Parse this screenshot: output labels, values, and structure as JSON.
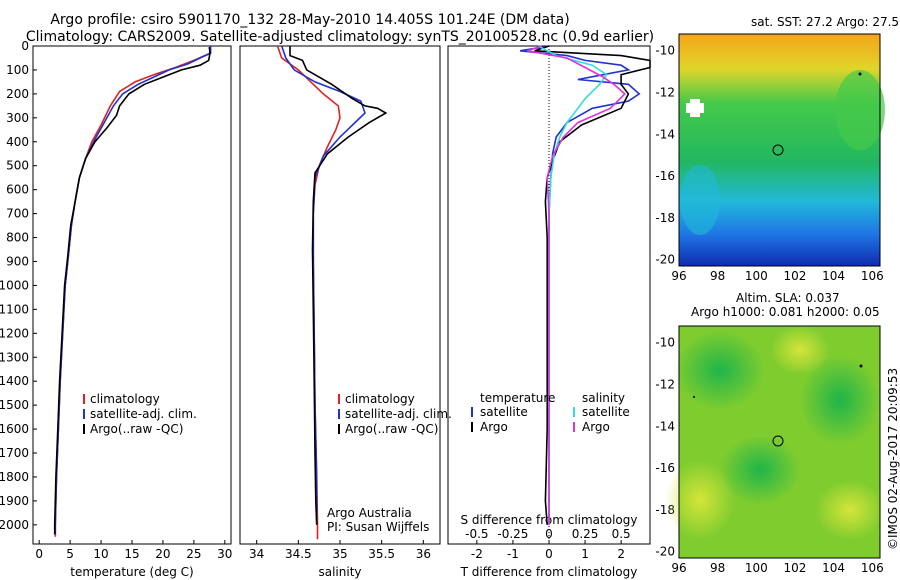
{
  "header": {
    "line1": "Argo profile: csiro 5901170_132 28-May-2010 14.405S 101.24E (DM data)",
    "line2": "Climatology: CARS2009. Satellite-adjusted climatology: synTS_20100528.nc (0.9d earlier)"
  },
  "colors": {
    "clim": "#dd2222",
    "sat": "#2233cc",
    "argo": "#000000",
    "sat_s": "#33dddd",
    "argo_s": "#dd33dd"
  },
  "chart_data": [
    {
      "type": "line",
      "id": "temperature",
      "xlabel": "temperature (deg C)",
      "xlim": [
        -1,
        31
      ],
      "ylim": [
        2080,
        0
      ],
      "xticks": [
        0,
        5,
        10,
        15,
        20,
        25,
        30
      ],
      "yticks": [
        0,
        100,
        200,
        300,
        400,
        500,
        600,
        700,
        800,
        900,
        1000,
        1100,
        1200,
        1300,
        1400,
        1500,
        1600,
        1700,
        1800,
        1900,
        2000
      ],
      "legend": [
        "climatology",
        "satellite-adj. clim.",
        "Argo(..raw -QC)"
      ],
      "series": [
        {
          "name": "climatology",
          "color_key": "clim",
          "points": [
            [
              27.6,
              0
            ],
            [
              27.6,
              30
            ],
            [
              25,
              60
            ],
            [
              22,
              90
            ],
            [
              18.5,
              120
            ],
            [
              15.5,
              150
            ],
            [
              13,
              190
            ],
            [
              11.5,
              250
            ],
            [
              10,
              330
            ],
            [
              8.5,
              400
            ],
            [
              7.5,
              470
            ],
            [
              6.5,
              550
            ],
            [
              5.8,
              650
            ],
            [
              5.2,
              750
            ],
            [
              4.7,
              880
            ],
            [
              4.2,
              1000
            ],
            [
              3.8,
              1200
            ],
            [
              3.4,
              1400
            ],
            [
              3.1,
              1600
            ],
            [
              2.8,
              1800
            ],
            [
              2.6,
              2000
            ],
            [
              2.6,
              2050
            ]
          ]
        },
        {
          "name": "satellite-adj. clim.",
          "color_key": "sat",
          "points": [
            [
              27.7,
              0
            ],
            [
              27.7,
              30
            ],
            [
              26,
              50
            ],
            [
              24,
              75
            ],
            [
              21,
              100
            ],
            [
              18.5,
              130
            ],
            [
              16,
              160
            ],
            [
              13.5,
              200
            ],
            [
              12,
              250
            ],
            [
              10.5,
              320
            ],
            [
              9,
              390
            ],
            [
              7.5,
              470
            ],
            [
              6.5,
              550
            ],
            [
              5.8,
              650
            ],
            [
              5.2,
              750
            ],
            [
              4.7,
              880
            ],
            [
              4.2,
              1000
            ],
            [
              3.8,
              1200
            ],
            [
              3.4,
              1400
            ],
            [
              3.1,
              1600
            ],
            [
              2.8,
              1800
            ],
            [
              2.6,
              2000
            ],
            [
              2.6,
              2040
            ]
          ]
        },
        {
          "name": "Argo(..raw -QC)",
          "color_key": "argo",
          "points": [
            [
              27.5,
              5
            ],
            [
              27.6,
              30
            ],
            [
              27.4,
              60
            ],
            [
              26,
              80
            ],
            [
              23,
              100
            ],
            [
              20,
              130
            ],
            [
              17,
              160
            ],
            [
              14.5,
              200
            ],
            [
              13,
              250
            ],
            [
              12.5,
              290
            ],
            [
              11,
              340
            ],
            [
              9,
              400
            ],
            [
              7.5,
              470
            ],
            [
              6.5,
              550
            ],
            [
              5.8,
              650
            ],
            [
              5.1,
              750
            ],
            [
              4.6,
              880
            ],
            [
              4.1,
              1000
            ],
            [
              3.7,
              1200
            ],
            [
              3.3,
              1400
            ],
            [
              3,
              1600
            ],
            [
              2.7,
              1800
            ],
            [
              2.5,
              2000
            ],
            [
              2.5,
              2040
            ]
          ]
        }
      ]
    },
    {
      "type": "line",
      "id": "salinity",
      "xlabel": "salinity",
      "xlim": [
        33.8,
        36.2
      ],
      "ylim": [
        2080,
        0
      ],
      "xticks": [
        34,
        34.5,
        35,
        35.5,
        36
      ],
      "legend": [
        "climatology",
        "satellite-adj. clim.",
        "Argo(..raw -QC)"
      ],
      "annotation": [
        "Argo Australia",
        "PI: Susan Wijffels"
      ],
      "series": [
        {
          "name": "climatology",
          "color_key": "clim",
          "points": [
            [
              34.25,
              0
            ],
            [
              34.3,
              50
            ],
            [
              34.5,
              100
            ],
            [
              34.65,
              150
            ],
            [
              34.8,
              200
            ],
            [
              34.98,
              250
            ],
            [
              35.0,
              300
            ],
            [
              34.95,
              350
            ],
            [
              34.85,
              420
            ],
            [
              34.75,
              500
            ],
            [
              34.7,
              580
            ],
            [
              34.68,
              700
            ],
            [
              34.68,
              900
            ],
            [
              34.69,
              1200
            ],
            [
              34.7,
              1500
            ],
            [
              34.72,
              1800
            ],
            [
              34.73,
              2000
            ],
            [
              34.73,
              2060
            ]
          ]
        },
        {
          "name": "satellite-adj. clim.",
          "color_key": "sat",
          "points": [
            [
              34.3,
              0
            ],
            [
              34.35,
              50
            ],
            [
              34.45,
              100
            ],
            [
              34.7,
              150
            ],
            [
              35.0,
              190
            ],
            [
              35.25,
              230
            ],
            [
              35.3,
              280
            ],
            [
              35.15,
              330
            ],
            [
              35.0,
              380
            ],
            [
              34.8,
              460
            ],
            [
              34.7,
              550
            ],
            [
              34.68,
              700
            ],
            [
              34.68,
              900
            ],
            [
              34.69,
              1200
            ],
            [
              34.7,
              1500
            ],
            [
              34.72,
              1800
            ],
            [
              34.72,
              1990
            ]
          ]
        },
        {
          "name": "Argo(..raw -QC)",
          "color_key": "argo",
          "points": [
            [
              34.4,
              0
            ],
            [
              34.4,
              40
            ],
            [
              34.55,
              60
            ],
            [
              34.6,
              100
            ],
            [
              34.9,
              160
            ],
            [
              35.15,
              220
            ],
            [
              35.3,
              250
            ],
            [
              35.45,
              260
            ],
            [
              35.55,
              280
            ],
            [
              35.35,
              320
            ],
            [
              35.1,
              380
            ],
            [
              34.85,
              450
            ],
            [
              34.7,
              530
            ],
            [
              34.68,
              650
            ],
            [
              34.67,
              850
            ],
            [
              34.68,
              1100
            ],
            [
              34.69,
              1400
            ],
            [
              34.7,
              1700
            ],
            [
              34.71,
              1900
            ],
            [
              34.72,
              2000
            ]
          ]
        }
      ]
    },
    {
      "type": "line",
      "id": "difference",
      "xlabel": "T difference from climatology",
      "xlabel_top": "S difference from climatology",
      "xlim": [
        -2.8,
        2.8
      ],
      "xticks": [
        -2,
        -1,
        0,
        1,
        2
      ],
      "xticks_s": [
        -0.5,
        -0.25,
        0,
        0.25,
        0.5
      ],
      "legend_t_title": "temperature",
      "legend_s_title": "salinity",
      "legend_t": [
        "satellite",
        "Argo"
      ],
      "legend_s": [
        "satellite",
        "Argo"
      ],
      "series": [
        {
          "name": "satellite",
          "color_key": "sat",
          "points": [
            [
              0,
              0
            ],
            [
              -0.8,
              20
            ],
            [
              0.5,
              40
            ],
            [
              1.0,
              60
            ],
            [
              2.0,
              80
            ],
            [
              2.2,
              100
            ],
            [
              1.5,
              120
            ],
            [
              0.8,
              140
            ],
            [
              2.2,
              160
            ],
            [
              2.5,
              200
            ],
            [
              2.2,
              230
            ],
            [
              1.2,
              260
            ],
            [
              0.5,
              320
            ],
            [
              0.2,
              380
            ],
            [
              0.1,
              450
            ],
            [
              0.05,
              550
            ],
            [
              0,
              700
            ],
            [
              0,
              1000
            ],
            [
              0,
              1500
            ],
            [
              0,
              2000
            ]
          ]
        },
        {
          "name": "Argo",
          "color_key": "argo",
          "points": [
            [
              0,
              0
            ],
            [
              -0.4,
              20
            ],
            [
              2.0,
              40
            ],
            [
              2.8,
              60
            ],
            [
              2.8,
              90
            ],
            [
              2.0,
              120
            ],
            [
              2.0,
              160
            ],
            [
              2.2,
              200
            ],
            [
              2.0,
              260
            ],
            [
              0.9,
              330
            ],
            [
              0.3,
              400
            ],
            [
              0.1,
              480
            ],
            [
              -0.05,
              550
            ],
            [
              -0.1,
              650
            ],
            [
              -0.05,
              800
            ],
            [
              -0.05,
              1000
            ],
            [
              -0.05,
              1300
            ],
            [
              -0.05,
              1600
            ],
            [
              -0.1,
              1900
            ],
            [
              -0.05,
              2000
            ]
          ]
        },
        {
          "name": "satellite",
          "color_key": "sat_s",
          "points": [
            [
              -0.3,
              0
            ],
            [
              0.2,
              40
            ],
            [
              1.2,
              80
            ],
            [
              1.6,
              120
            ],
            [
              1.4,
              160
            ],
            [
              1.0,
              220
            ],
            [
              0.8,
              260
            ],
            [
              0.5,
              320
            ],
            [
              0.3,
              380
            ],
            [
              0.15,
              450
            ],
            [
              0.05,
              550
            ],
            [
              0,
              700
            ],
            [
              0,
              1200
            ],
            [
              0,
              2000
            ]
          ]
        },
        {
          "name": "Argo",
          "color_key": "argo_s",
          "points": [
            [
              -0.2,
              0
            ],
            [
              -0.6,
              20
            ],
            [
              0.5,
              50
            ],
            [
              1.0,
              90
            ],
            [
              1.5,
              130
            ],
            [
              1.8,
              160
            ],
            [
              2.1,
              200
            ],
            [
              1.7,
              260
            ],
            [
              0.8,
              320
            ],
            [
              0.4,
              380
            ],
            [
              0.1,
              460
            ],
            [
              -0.05,
              550
            ],
            [
              0,
              700
            ],
            [
              0,
              1200
            ],
            [
              0,
              2000
            ]
          ]
        }
      ]
    },
    {
      "type": "heatmap",
      "id": "sst-map",
      "title": "sat. SST: 27.2  Argo: 27.5",
      "xticks": [
        96,
        98,
        100,
        102,
        104,
        106
      ],
      "yticks": [
        -10,
        -12,
        -14,
        -16,
        -18,
        -20
      ]
    },
    {
      "type": "heatmap",
      "id": "sla-map",
      "title1": "Altim. SLA: 0.037",
      "title2": "Argo h1000: 0.081 h2000: 0.05",
      "xticks": [
        96,
        98,
        100,
        102,
        104,
        106
      ],
      "yticks": [
        -10,
        -12,
        -14,
        -16,
        -18,
        -20
      ]
    }
  ],
  "credit": "©IMOS 02-Aug-2017 20:09:53"
}
